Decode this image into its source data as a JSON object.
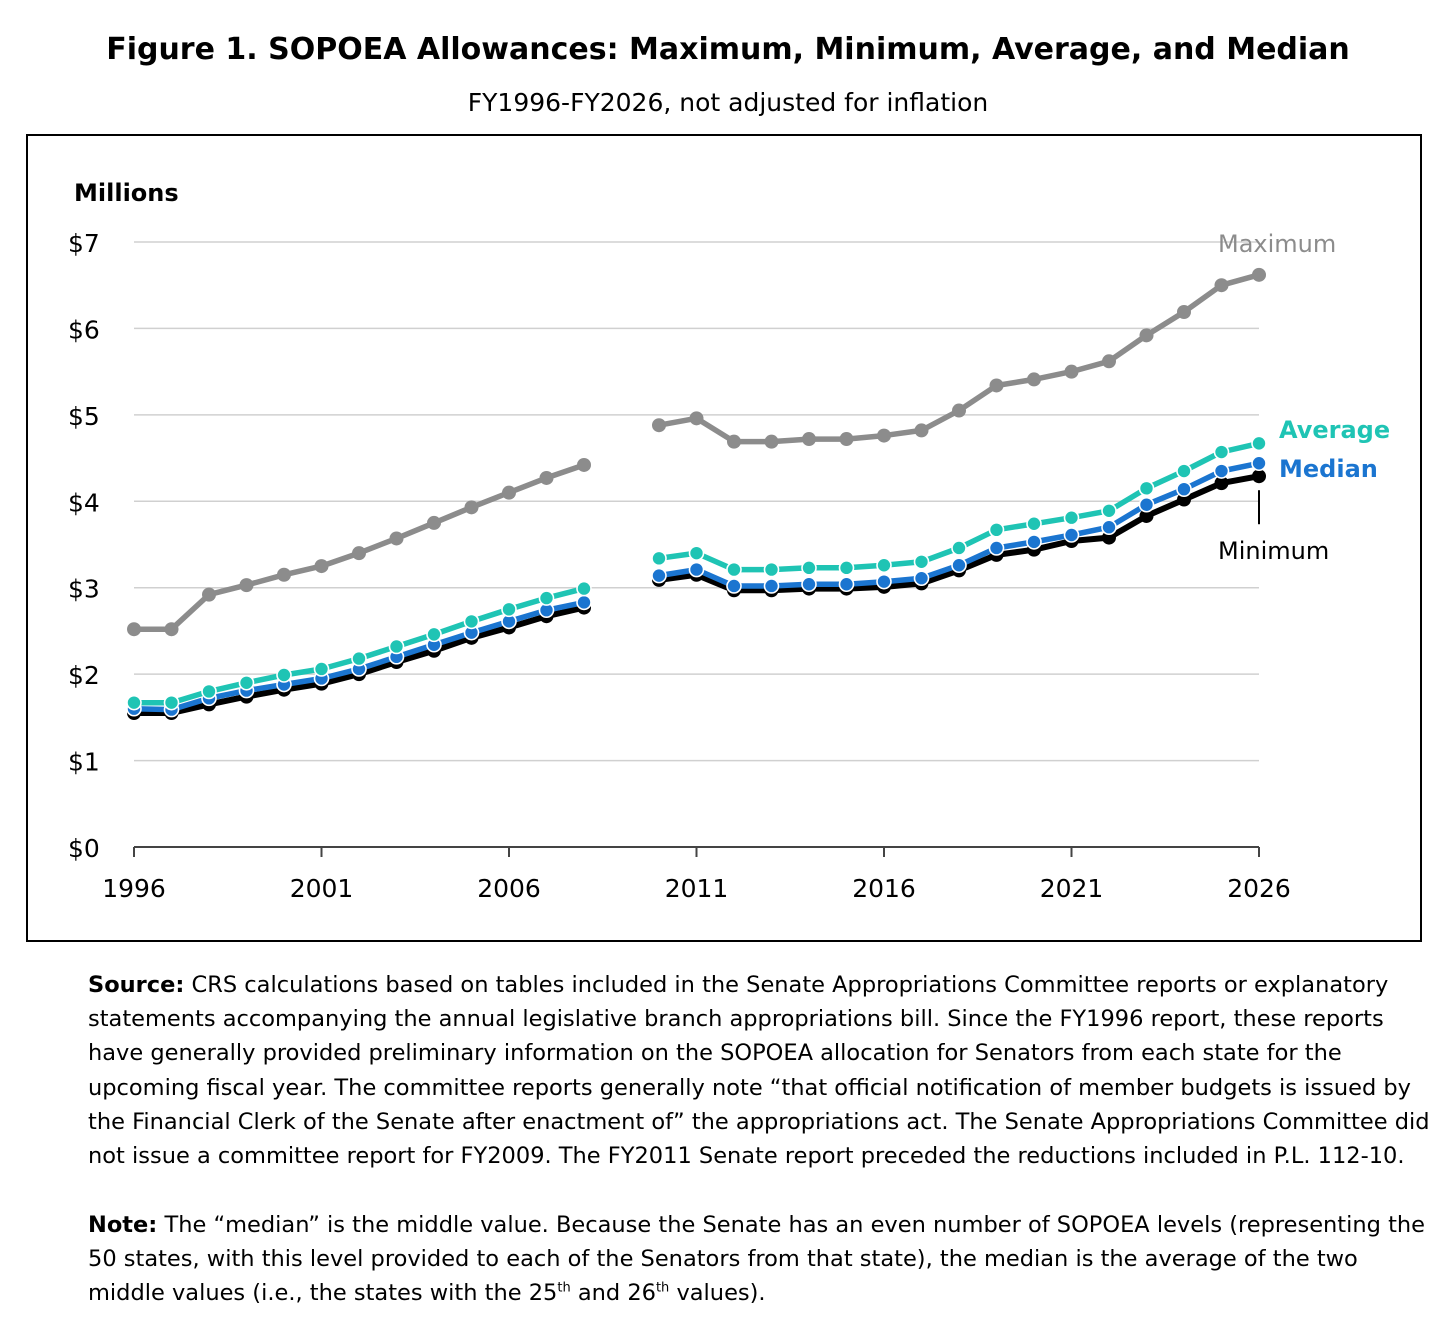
{
  "title": "Figure 1. SOPOEA Allowances: Maximum, Minimum, Average, and Median",
  "subtitle": "FY1996-FY2026, not adjusted for inflation",
  "chart_data": {
    "type": "line",
    "title": "Figure 1. SOPOEA Allowances: Maximum, Minimum, Average, and Median",
    "subtitle": "FY1996-FY2026, not adjusted for inflation",
    "ylabel": "Millions",
    "xlabel": "",
    "ylim": [
      0,
      7
    ],
    "xlim": [
      1996,
      2026
    ],
    "yticks": [
      0,
      1,
      2,
      3,
      4,
      5,
      6,
      7
    ],
    "ytick_labels": [
      "$0",
      "$1",
      "$2",
      "$3",
      "$4",
      "$5",
      "$6",
      "$7"
    ],
    "xticks": [
      1996,
      2001,
      2006,
      2011,
      2016,
      2021,
      2026
    ],
    "xtick_labels": [
      "1996",
      "2001",
      "2006",
      "2011",
      "2016",
      "2021",
      "2026"
    ],
    "grid": "horizontal",
    "legend": "direct labels at right end of lines",
    "x": [
      1996,
      1997,
      1998,
      1999,
      2000,
      2001,
      2002,
      2003,
      2004,
      2005,
      2006,
      2007,
      2008,
      2009,
      2010,
      2011,
      2012,
      2013,
      2014,
      2015,
      2016,
      2017,
      2018,
      2019,
      2020,
      2021,
      2022,
      2023,
      2024,
      2025,
      2026
    ],
    "series": [
      {
        "name": "Maximum",
        "color": "#8c8c8c",
        "values": [
          2.52,
          2.52,
          2.92,
          3.03,
          3.15,
          3.25,
          3.4,
          3.57,
          3.75,
          3.93,
          4.1,
          4.27,
          4.42,
          null,
          4.88,
          4.96,
          4.69,
          4.69,
          4.72,
          4.72,
          4.76,
          4.82,
          5.05,
          5.34,
          5.41,
          5.5,
          5.62,
          5.92,
          6.19,
          6.5,
          6.62
        ]
      },
      {
        "name": "Average",
        "color": "#1fc4b4",
        "values": [
          1.67,
          1.67,
          1.8,
          1.9,
          1.99,
          2.06,
          2.18,
          2.32,
          2.46,
          2.61,
          2.75,
          2.88,
          2.99,
          null,
          3.34,
          3.4,
          3.21,
          3.21,
          3.23,
          3.23,
          3.26,
          3.3,
          3.46,
          3.67,
          3.74,
          3.81,
          3.89,
          4.15,
          4.35,
          4.57,
          4.67
        ]
      },
      {
        "name": "Median",
        "color": "#1b75d0",
        "values": [
          1.6,
          1.59,
          1.72,
          1.81,
          1.88,
          1.95,
          2.06,
          2.2,
          2.34,
          2.48,
          2.61,
          2.74,
          2.83,
          null,
          3.14,
          3.21,
          3.02,
          3.02,
          3.04,
          3.04,
          3.07,
          3.11,
          3.26,
          3.46,
          3.53,
          3.61,
          3.7,
          3.96,
          4.14,
          4.35,
          4.44
        ]
      },
      {
        "name": "Minimum",
        "color": "#000000",
        "values": [
          1.55,
          1.55,
          1.65,
          1.74,
          1.82,
          1.89,
          2.0,
          2.14,
          2.27,
          2.42,
          2.54,
          2.67,
          2.77,
          null,
          3.09,
          3.15,
          2.97,
          2.97,
          2.99,
          2.99,
          3.01,
          3.05,
          3.2,
          3.38,
          3.44,
          3.54,
          3.58,
          3.83,
          4.02,
          4.21,
          4.29
        ]
      }
    ],
    "label_colors": {
      "Maximum": "#8c8c8c",
      "Average": "#1fc4b4",
      "Median": "#1b75d0",
      "Minimum": "#000000"
    }
  },
  "source": {
    "label": "Source:",
    "text": "CRS calculations based on tables included in the Senate Appropriations Committee reports or explanatory statements accompanying the annual legislative branch appropriations bill. Since the FY1996 report, these reports have generally provided preliminary information on the SOPOEA allocation for Senators from each state for the upcoming fiscal year. The committee reports generally note “that official notification of member budgets is issued by the Financial Clerk of the Senate after enactment of” the appropriations act. The Senate Appropriations Committee did not issue a committee report for FY2009. The FY2011 Senate report preceded the reductions included in P.L. 112-10."
  },
  "note": {
    "label": "Note:",
    "text_before": "The “median” is the middle value. Because the Senate has an even number of SOPOEA levels (representing the 50 states, with this level provided to each of the Senators from that state), the median is the average of the two middle values (i.e., the states with the 25",
    "sup1": "th",
    "text_mid": " and 26",
    "sup2": "th",
    "text_after": " values)."
  }
}
